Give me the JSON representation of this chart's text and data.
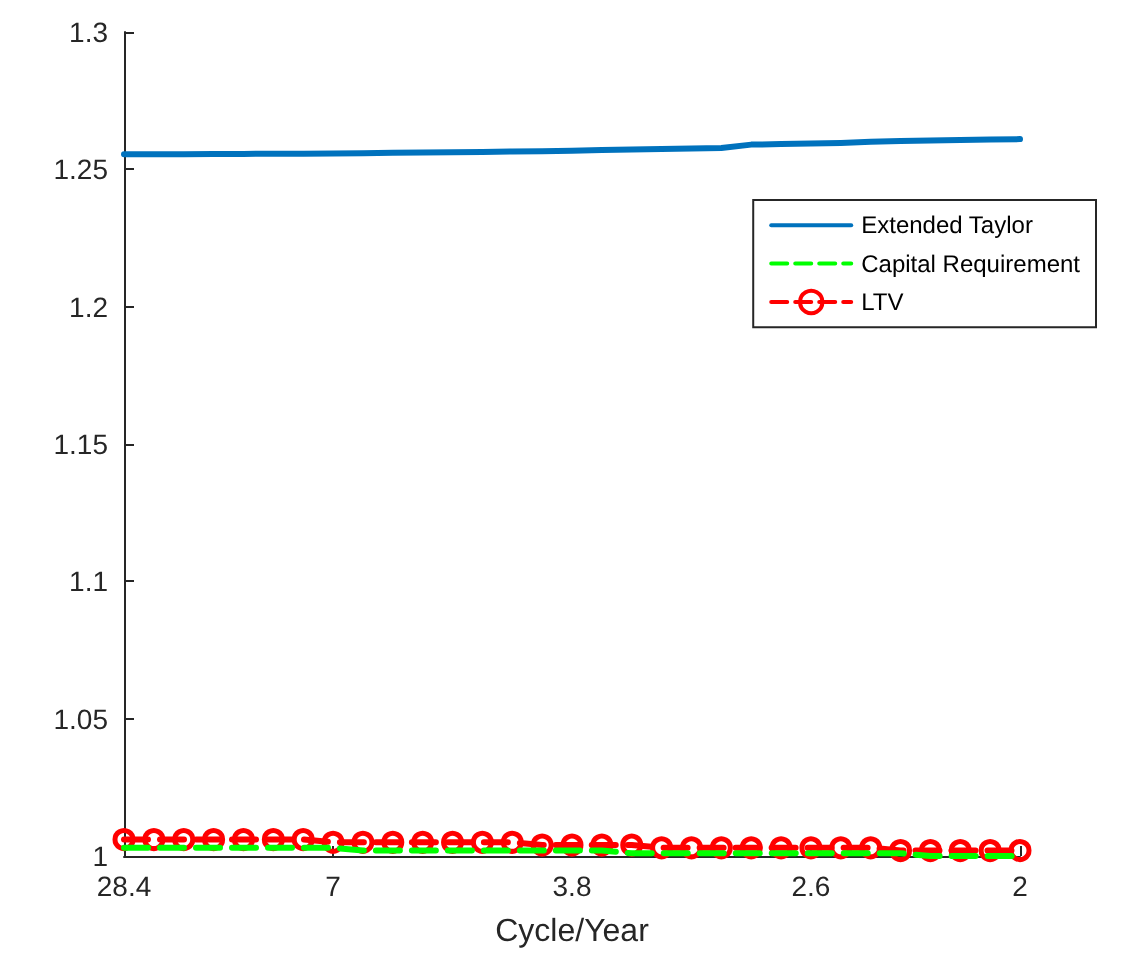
{
  "chart_data": {
    "type": "line",
    "xlabel": "Cycle/Year",
    "categories": [
      "28.4",
      null,
      null,
      null,
      null,
      null,
      null,
      "7",
      null,
      null,
      null,
      null,
      null,
      null,
      null,
      "3.8",
      null,
      null,
      null,
      null,
      null,
      null,
      null,
      "2.6",
      null,
      null,
      null,
      null,
      null,
      null,
      "2"
    ],
    "series": [
      {
        "name": "Extended Taylor",
        "color": "#0072bd",
        "line_style": "solid",
        "marker": "none",
        "values": [
          1.2555,
          1.2555,
          1.2555,
          1.2556,
          1.2556,
          1.2557,
          1.2557,
          1.2558,
          1.2559,
          1.256,
          1.2561,
          1.2562,
          1.2563,
          1.2565,
          1.2566,
          1.2568,
          1.257,
          1.2572,
          1.2574,
          1.2576,
          1.2578,
          1.259,
          1.2592,
          1.2594,
          1.2596,
          1.26,
          1.2603,
          1.2605,
          1.2607,
          1.2609,
          1.261
        ]
      },
      {
        "name": "Capital Requirement",
        "color": "#00ff00",
        "line_style": "dashed",
        "marker": "none",
        "values": [
          1.003,
          1.003,
          1.003,
          1.003,
          1.003,
          1.003,
          1.003,
          1.003,
          1.002,
          1.002,
          1.002,
          1.002,
          1.002,
          1.002,
          1.002,
          1.002,
          1.002,
          1.001,
          1.001,
          1.001,
          1.001,
          1.001,
          1.001,
          1.001,
          1.001,
          1.001,
          1.001,
          1.0,
          1.0,
          1.0,
          1.0
        ]
      },
      {
        "name": "LTV",
        "color": "#ff0000",
        "line_style": "dashed",
        "marker": "circle",
        "values": [
          1.006,
          1.006,
          1.006,
          1.006,
          1.006,
          1.006,
          1.006,
          1.005,
          1.005,
          1.005,
          1.005,
          1.005,
          1.005,
          1.005,
          1.004,
          1.004,
          1.004,
          1.004,
          1.003,
          1.003,
          1.003,
          1.003,
          1.003,
          1.003,
          1.003,
          1.003,
          1.002,
          1.002,
          1.002,
          1.002,
          1.002
        ]
      }
    ],
    "ylim": [
      1,
      1.3
    ],
    "yticks": [
      1,
      1.05,
      1.1,
      1.15,
      1.2,
      1.25,
      1.3
    ],
    "grid": false,
    "legend": "top right"
  }
}
